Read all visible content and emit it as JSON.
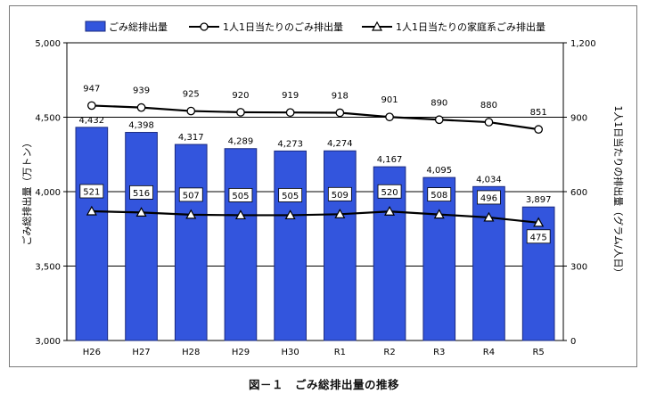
{
  "caption": "図－１　ごみ総排出量の推移",
  "chart_data": {
    "type": "bar",
    "categories": [
      "H26",
      "H27",
      "H28",
      "H29",
      "H30",
      "R1",
      "R2",
      "R3",
      "R4",
      "R5"
    ],
    "series": [
      {
        "name": "ごみ総排出量",
        "type": "bar",
        "axis": "left",
        "color": "#3355dd",
        "values": [
          4432,
          4398,
          4317,
          4289,
          4273,
          4274,
          4167,
          4095,
          4034,
          3897
        ],
        "labels": [
          "4,432",
          "4,398",
          "4,317",
          "4,289",
          "4,273",
          "4,274",
          "4,167",
          "4,095",
          "4,034",
          "3,897"
        ]
      },
      {
        "name": "1人1日当たりのごみ排出量",
        "type": "line",
        "axis": "right",
        "marker": "circle",
        "values": [
          947,
          939,
          925,
          920,
          919,
          918,
          901,
          890,
          880,
          851
        ],
        "labels": [
          "947",
          "939",
          "925",
          "920",
          "919",
          "918",
          "901",
          "890",
          "880",
          "851"
        ]
      },
      {
        "name": "1人1日当たりの家庭系ごみ排出量",
        "type": "line",
        "axis": "right",
        "marker": "triangle",
        "values": [
          521,
          516,
          507,
          505,
          505,
          509,
          520,
          508,
          496,
          475
        ],
        "labels": [
          "521",
          "516",
          "507",
          "505",
          "505",
          "509",
          "520",
          "508",
          "496",
          "475"
        ]
      }
    ],
    "ylabel": "ごみ総排出量（万トン）",
    "ylabel_right": "1人1日当たりの排出量（グラム/人日）",
    "ylim": [
      3000,
      5000
    ],
    "yticks": [
      "3,000",
      "3,500",
      "4,000",
      "4,500",
      "5,000"
    ],
    "ylim_right": [
      0,
      1200
    ],
    "yticks_right": [
      "0",
      "300",
      "600",
      "900",
      "1,200"
    ],
    "grid": true,
    "legend": "top"
  }
}
